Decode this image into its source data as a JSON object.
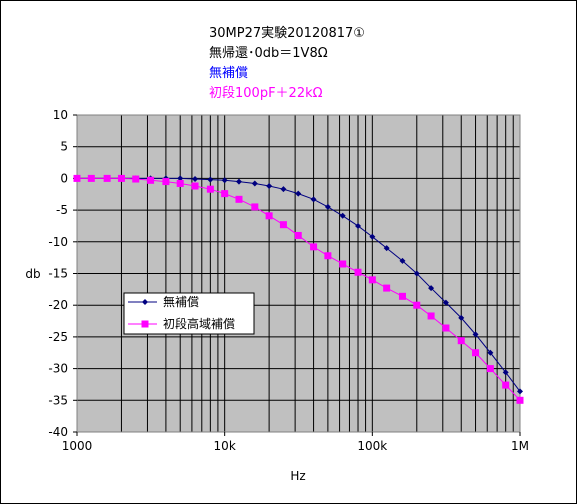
{
  "chart_data": {
    "type": "line",
    "title_lines": [
      {
        "text": "30MP27実験20120817①",
        "color": "#000000"
      },
      {
        "text": "無帰還･0db＝1V8Ω",
        "color": "#000000"
      },
      {
        "text": "無補償",
        "color": "#0000ff"
      },
      {
        "text": "初段100pF＋22kΩ",
        "color": "#ff00ff"
      }
    ],
    "xlabel": "Hz",
    "ylabel": "db",
    "x_scale": "log",
    "xlim": [
      1000,
      1000000
    ],
    "ylim": [
      -40,
      10
    ],
    "x_tick_labels": [
      {
        "value": 1000,
        "label": "1000"
      },
      {
        "value": 10000,
        "label": "10k"
      },
      {
        "value": 100000,
        "label": "100k"
      },
      {
        "value": 1000000,
        "label": "1M"
      }
    ],
    "y_tick_labels": [
      "10",
      "5",
      "0",
      "-5",
      "-10",
      "-15",
      "-20",
      "-25",
      "-30",
      "-35",
      "-40"
    ],
    "grid": true,
    "plot_background": "#c0c0c0",
    "legend_position": "left-middle",
    "x": [
      1000,
      1250,
      1600,
      2000,
      2500,
      3150,
      4000,
      5000,
      6300,
      8000,
      10000,
      12500,
      16000,
      20000,
      25000,
      31500,
      40000,
      50000,
      63000,
      80000,
      100000,
      125000,
      160000,
      200000,
      250000,
      315000,
      400000,
      500000,
      630000,
      800000,
      1000000
    ],
    "series": [
      {
        "name": "無補償",
        "color": "#000080",
        "marker": "diamond",
        "values": [
          0,
          0,
          0,
          0,
          0,
          0,
          0,
          0,
          -0.1,
          -0.2,
          -0.3,
          -0.5,
          -0.8,
          -1.2,
          -1.7,
          -2.4,
          -3.3,
          -4.5,
          -5.9,
          -7.5,
          -9.2,
          -11.0,
          -13.0,
          -15.0,
          -17.3,
          -19.6,
          -22.0,
          -24.6,
          -27.5,
          -30.6,
          -33.6
        ]
      },
      {
        "name": "初段高域補償",
        "color": "#ff00ff",
        "marker": "square",
        "values": [
          0,
          0,
          0,
          0,
          -0.1,
          -0.3,
          -0.5,
          -0.8,
          -1.2,
          -1.7,
          -2.4,
          -3.3,
          -4.5,
          -5.9,
          -7.3,
          -9.0,
          -10.8,
          -12.2,
          -13.5,
          -14.8,
          -16.0,
          -17.3,
          -18.6,
          -20.0,
          -21.7,
          -23.6,
          -25.6,
          -27.5,
          -30.0,
          -32.6,
          -35.0
        ]
      }
    ]
  }
}
